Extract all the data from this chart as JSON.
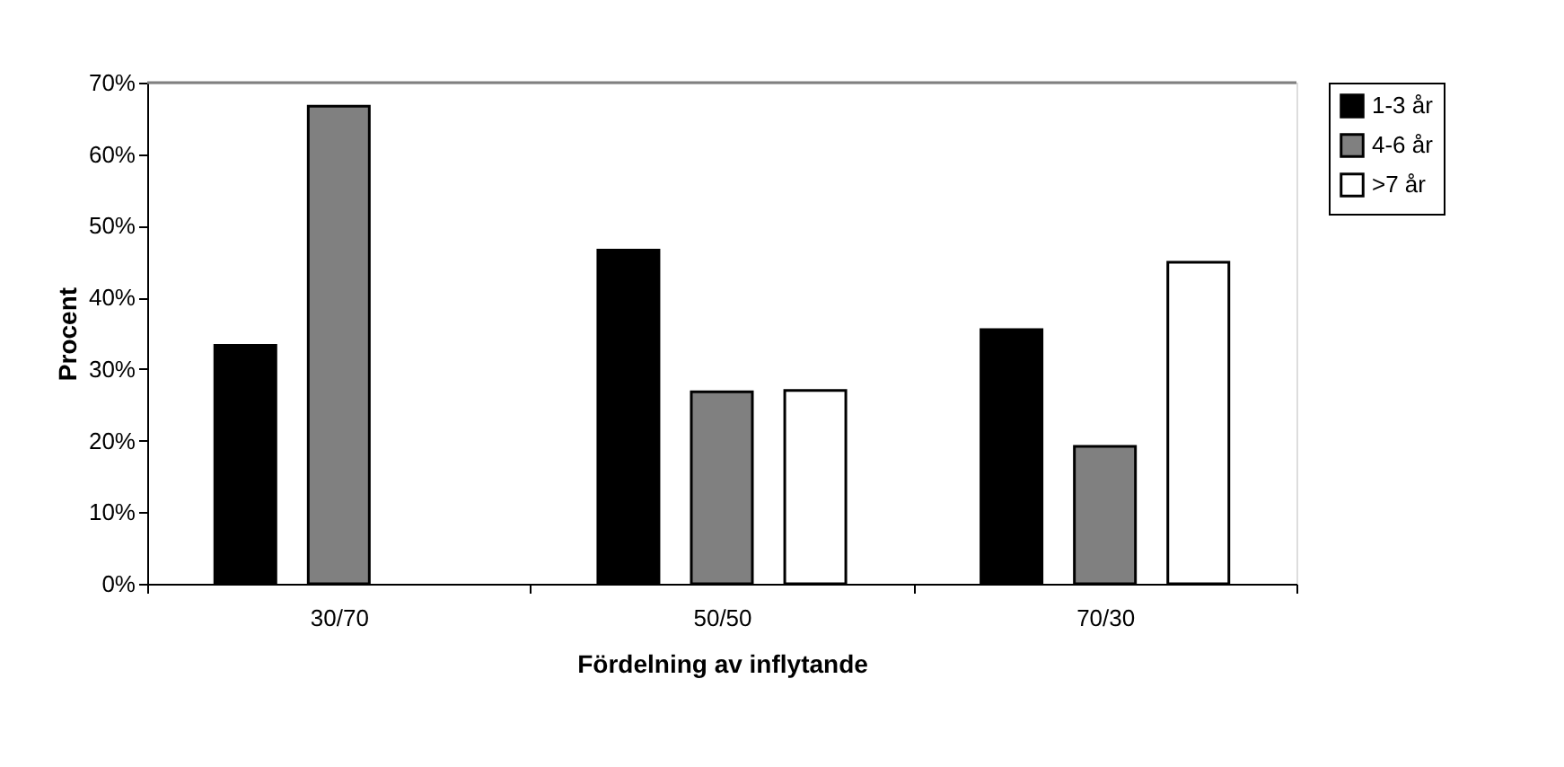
{
  "chart_data": {
    "type": "bar",
    "xlabel": "Fördelning av inflytande",
    "ylabel": "Procent",
    "categories": [
      "30/70",
      "50/50",
      "70/30"
    ],
    "series": [
      {
        "name": "1-3 år",
        "color": "#000000",
        "values": [
          33.3,
          46.6,
          35.5
        ]
      },
      {
        "name": "4-6 år",
        "color": "#808080",
        "values": [
          66.7,
          26.8,
          19.2
        ]
      },
      {
        "name": ">7 år",
        "color": "#ffffff",
        "values": [
          null,
          27.0,
          44.9
        ]
      }
    ],
    "ylim": [
      0,
      70
    ],
    "yticks": [
      {
        "value": 0,
        "label": "0%"
      },
      {
        "value": 10,
        "label": "10%"
      },
      {
        "value": 20,
        "label": "20%"
      },
      {
        "value": 30,
        "label": "30%"
      },
      {
        "value": 40,
        "label": "40%"
      },
      {
        "value": 50,
        "label": "50%"
      },
      {
        "value": 60,
        "label": "60%"
      },
      {
        "value": 70,
        "label": "70%"
      }
    ],
    "grid": false,
    "legend": "right"
  }
}
